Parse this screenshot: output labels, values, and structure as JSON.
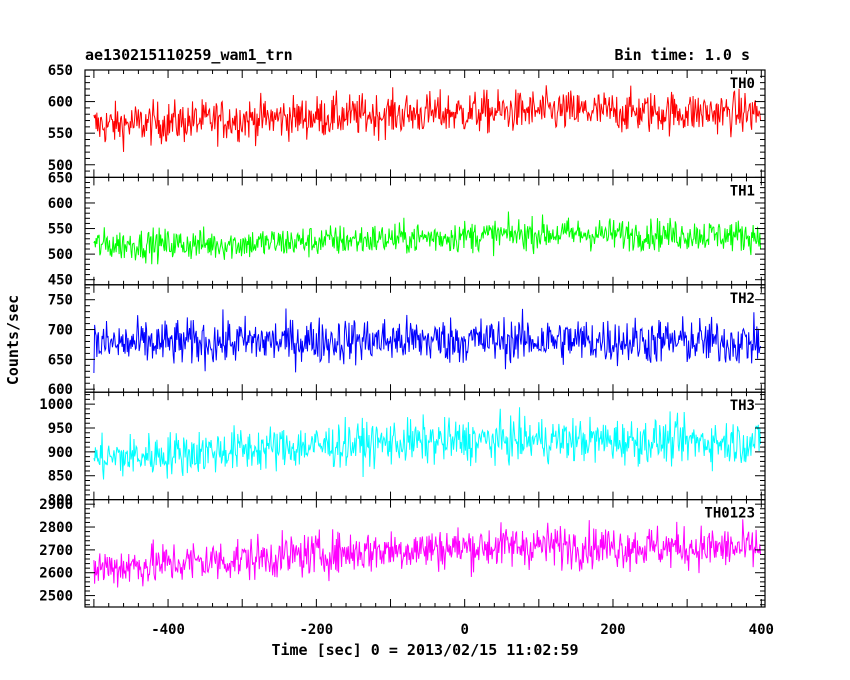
{
  "header": {
    "title": "ae130215110259_wam1_trn",
    "bin_time": "Bin time: 1.0 s"
  },
  "chart_data": {
    "type": "line",
    "title": "ae130215110259_wam1_trn",
    "subtitle": "Bin time: 1.0 s",
    "xlabel": "Time [sec] 0 = 2013/02/15 11:02:59",
    "ylabel": "Counts/sec",
    "xlim": [
      -512,
      405
    ],
    "x_start": -500,
    "x_end": 399,
    "x_step": 1,
    "xticks": [
      -400,
      -200,
      0,
      200,
      400
    ],
    "grid": false,
    "legend": "none",
    "panels": [
      {
        "name": "TH0",
        "color": "#ff0000",
        "ylim": [
          480,
          650
        ],
        "yticks": [
          500,
          550,
          600,
          650
        ],
        "trend": [
          [
            -500,
            562
          ],
          [
            -300,
            572
          ],
          [
            -100,
            580
          ],
          [
            100,
            585
          ],
          [
            300,
            583
          ],
          [
            399,
            582
          ]
        ],
        "amplitude": 30
      },
      {
        "name": "TH1",
        "color": "#00ff00",
        "ylim": [
          440,
          650
        ],
        "yticks": [
          450,
          500,
          550,
          600,
          650
        ],
        "trend": [
          [
            -500,
            518
          ],
          [
            -300,
            520
          ],
          [
            -100,
            530
          ],
          [
            100,
            540
          ],
          [
            300,
            538
          ],
          [
            399,
            535
          ]
        ],
        "amplitude": 28
      },
      {
        "name": "TH2",
        "color": "#0000ff",
        "ylim": [
          595,
          775
        ],
        "yticks": [
          600,
          650,
          700,
          750
        ],
        "trend": [
          [
            -500,
            675
          ],
          [
            -300,
            680
          ],
          [
            -100,
            682
          ],
          [
            100,
            682
          ],
          [
            300,
            680
          ],
          [
            399,
            678
          ]
        ],
        "amplitude": 35
      },
      {
        "name": "TH3",
        "color": "#00ffff",
        "ylim": [
          800,
          1025
        ],
        "yticks": [
          800,
          850,
          900,
          950,
          1000
        ],
        "trend": [
          [
            -500,
            885
          ],
          [
            -300,
            905
          ],
          [
            -100,
            920
          ],
          [
            100,
            925
          ],
          [
            300,
            922
          ],
          [
            399,
            920
          ]
        ],
        "amplitude": 42
      },
      {
        "name": "TH0123",
        "color": "#ff00ff",
        "ylim": [
          2450,
          2920
        ],
        "yticks": [
          2500,
          2600,
          2700,
          2800,
          2900
        ],
        "trend": [
          [
            -500,
            2620
          ],
          [
            -300,
            2660
          ],
          [
            -100,
            2700
          ],
          [
            100,
            2720
          ],
          [
            300,
            2710
          ],
          [
            399,
            2705
          ]
        ],
        "amplitude": 85
      }
    ]
  }
}
